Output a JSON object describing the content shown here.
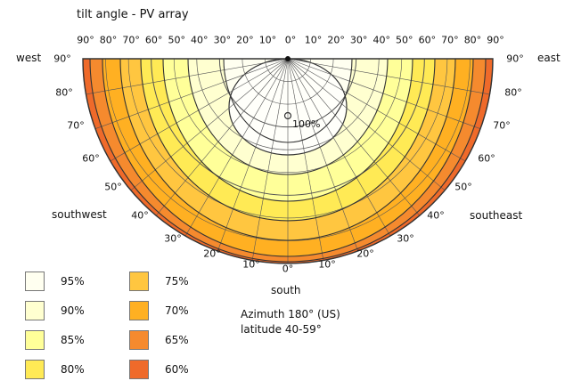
{
  "title": "tilt angle - PV array",
  "direction_labels": {
    "west": "west",
    "east": "east",
    "southwest": "southwest",
    "southeast": "southeast",
    "south": "south"
  },
  "top_ticks": [
    "90°",
    "80°",
    "70°",
    "60°",
    "50°",
    "40°",
    "30°",
    "20°",
    "10°",
    "0°",
    "10°",
    "20°",
    "30°",
    "40°",
    "50°",
    "60°",
    "70°",
    "80°",
    "90°"
  ],
  "left_arc_ticks": [
    "90°",
    "80°",
    "70°",
    "60°",
    "50°",
    "40°",
    "30°",
    "20°",
    "10°"
  ],
  "right_arc_ticks": [
    "90°",
    "80°",
    "70°",
    "60°",
    "50°",
    "40°",
    "30°",
    "20°",
    "10°"
  ],
  "bottom_tick": "0°",
  "center_label": "100%",
  "info": {
    "azimuth": "Azimuth 180° (US)",
    "latitude": "latitude 40-59°"
  },
  "legend": [
    {
      "label": "95%",
      "color": "#fffff0"
    },
    {
      "label": "90%",
      "color": "#ffffd0"
    },
    {
      "label": "85%",
      "color": "#ffff99"
    },
    {
      "label": "80%",
      "color": "#ffea55"
    },
    {
      "label": "75%",
      "color": "#ffc640"
    },
    {
      "label": "70%",
      "color": "#ffb022"
    },
    {
      "label": "65%",
      "color": "#f58a2e"
    },
    {
      "label": "60%",
      "color": "#ef6a2a"
    }
  ]
}
